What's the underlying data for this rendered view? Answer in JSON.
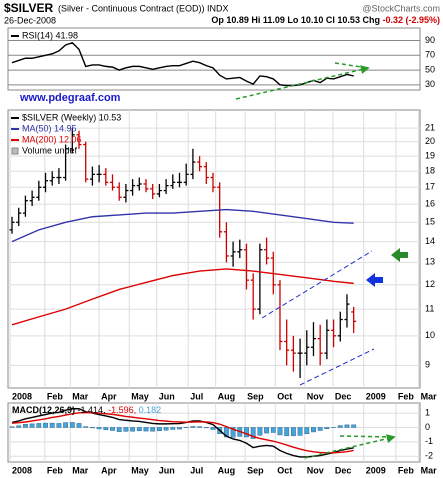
{
  "header": {
    "symbol": "$SILVER",
    "description": "(Silver - Continuous Contract (EOD)) INDX",
    "source": "@StockCharts.com",
    "date": "26-Dec-2008",
    "quote": "Op 10.89 Hi 11.09 Lo 10.10 Cl 10.53 Chg",
    "change": "-0.32 (-2.95%)"
  },
  "watermark": "www.pdegraaf.com",
  "chart_data": [
    {
      "type": "line",
      "xlim": [
        -0.6,
        60.9
      ],
      "ylim": [
        23,
        107
      ],
      "yticks": [
        30,
        50,
        70,
        90
      ],
      "grid_color": "#888888",
      "legend": "upper left",
      "series": [
        {
          "name": "RSI(14) 41.98",
          "color": "#000000",
          "values": [
            60,
            63,
            66,
            66,
            68,
            70,
            72,
            76,
            84,
            87,
            78,
            55,
            57,
            57,
            55,
            54,
            50,
            53,
            55,
            55,
            53,
            51,
            53,
            55,
            56,
            56,
            59,
            62,
            60,
            56,
            53,
            43,
            38,
            39,
            40,
            35,
            31,
            42,
            41,
            38,
            30,
            29,
            29,
            30,
            33,
            36,
            33,
            39,
            38,
            41,
            44,
            41.98
          ]
        }
      ]
    },
    {
      "type": "ohlc",
      "log": true,
      "xlim": [
        -0.6,
        60.9
      ],
      "ylim": [
        8.3,
        22.4
      ],
      "yticks": [
        9,
        10,
        11,
        12,
        13,
        14,
        15,
        16,
        17,
        18,
        19,
        20,
        21
      ],
      "grid_color": "#dddddd",
      "legend": "upper left",
      "xticks": [
        {
          "value": -0.3,
          "label": "2008"
        },
        {
          "value": 4.9,
          "label": "Feb"
        },
        {
          "value": 8.7,
          "label": "Mar"
        },
        {
          "value": 13.0,
          "label": "Apr"
        },
        {
          "value": 17.5,
          "label": "May"
        },
        {
          "value": 21.6,
          "label": "Jun"
        },
        {
          "value": 26.3,
          "label": "Jul"
        },
        {
          "value": 30.4,
          "label": "Aug"
        },
        {
          "value": 34.8,
          "label": "Sep"
        },
        {
          "value": 39.3,
          "label": "Oct"
        },
        {
          "value": 43.7,
          "label": "Nov"
        },
        {
          "value": 47.9,
          "label": "Dec"
        },
        {
          "value": 52.5,
          "label": "2009"
        },
        {
          "value": 57.3,
          "label": "Feb"
        },
        {
          "value": 60.7,
          "label": "Mar"
        }
      ],
      "legend_note": "Volume undef",
      "series": [
        {
          "name": "$SILVER (Weekly) 10.53",
          "color": "#000000",
          "down_color": "#cc0000",
          "open": [
            14.6,
            15.0,
            15.5,
            16.2,
            16.4,
            17.0,
            17.4,
            17.6,
            17.6,
            19.5,
            20.5,
            19.8,
            17.5,
            17.8,
            17.8,
            17.3,
            17.0,
            16.4,
            16.8,
            17.1,
            17.2,
            16.9,
            16.6,
            16.8,
            17.1,
            17.3,
            17.3,
            17.8,
            18.6,
            18.3,
            17.6,
            17.0,
            14.5,
            13.3,
            13.5,
            13.6,
            12.2,
            11.0,
            13.6,
            13.2,
            12.0,
            9.8,
            9.5,
            9.4,
            9.4,
            9.6,
            9.9,
            9.4,
            10.2,
            10.0,
            10.6,
            10.89
          ],
          "high": [
            15.3,
            15.8,
            16.5,
            16.8,
            17.4,
            17.9,
            18.0,
            18.2,
            19.8,
            21.0,
            20.8,
            20.0,
            18.3,
            18.4,
            18.2,
            17.8,
            17.3,
            17.2,
            17.5,
            17.6,
            17.5,
            17.2,
            17.2,
            17.5,
            17.8,
            17.9,
            18.5,
            19.5,
            19.0,
            18.6,
            17.9,
            17.3,
            15.0,
            14.0,
            14.1,
            13.9,
            12.5,
            13.9,
            14.2,
            13.5,
            12.2,
            10.6,
            10.0,
            9.9,
            10.2,
            10.5,
            10.4,
            10.6,
            10.6,
            10.9,
            11.6,
            11.09
          ],
          "low": [
            14.4,
            14.8,
            15.3,
            15.9,
            16.2,
            16.7,
            17.1,
            17.2,
            17.4,
            19.2,
            19.5,
            17.3,
            17.1,
            17.3,
            17.1,
            16.8,
            16.2,
            16.1,
            16.5,
            16.8,
            16.7,
            16.3,
            16.4,
            16.6,
            16.9,
            17.0,
            17.1,
            17.5,
            18.0,
            17.2,
            16.7,
            14.2,
            13.0,
            12.8,
            13.2,
            11.8,
            10.6,
            10.8,
            12.9,
            11.6,
            9.5,
            9.0,
            8.8,
            8.6,
            9.0,
            9.3,
            9.0,
            9.2,
            9.6,
            9.8,
            10.3,
            10.1
          ],
          "close": [
            15.0,
            15.5,
            16.2,
            16.4,
            17.0,
            17.4,
            17.6,
            17.6,
            19.5,
            20.5,
            19.8,
            17.5,
            17.8,
            17.8,
            17.3,
            17.0,
            16.4,
            16.8,
            17.1,
            17.2,
            16.9,
            16.6,
            16.8,
            17.1,
            17.3,
            17.3,
            17.8,
            18.6,
            18.3,
            17.6,
            17.0,
            14.5,
            13.3,
            13.5,
            13.6,
            12.2,
            11.0,
            13.6,
            13.2,
            12.0,
            9.8,
            9.5,
            9.4,
            9.4,
            9.6,
            9.9,
            9.4,
            10.2,
            10.0,
            10.6,
            11.2,
            10.53
          ]
        },
        {
          "name": "MA(50) 14.95",
          "type": "line",
          "color": "#3333aa",
          "x": [
            0,
            4,
            8,
            12,
            16,
            20,
            24,
            28,
            32,
            36,
            40,
            44,
            48,
            51
          ],
          "values": [
            14.0,
            14.6,
            15.0,
            15.3,
            15.4,
            15.5,
            15.5,
            15.6,
            15.7,
            15.6,
            15.4,
            15.2,
            15.0,
            14.95
          ]
        },
        {
          "name": "MA(200) 12.06",
          "type": "line",
          "color": "#dd0000",
          "x": [
            0,
            4,
            8,
            12,
            16,
            20,
            24,
            28,
            32,
            36,
            40,
            44,
            48,
            51
          ],
          "values": [
            10.4,
            10.7,
            11.0,
            11.4,
            11.8,
            12.1,
            12.4,
            12.6,
            12.7,
            12.6,
            12.45,
            12.3,
            12.15,
            12.06
          ]
        }
      ]
    },
    {
      "type": "line",
      "xlim": [
        -0.6,
        60.9
      ],
      "ylim": [
        -2.4,
        1.7
      ],
      "yticks": [
        -2,
        -1,
        0,
        1
      ],
      "grid_color": "#dddddd",
      "legend": "inline",
      "label": "MACD(12,26,9)",
      "xticks": [
        {
          "value": -0.3,
          "label": "2008"
        },
        {
          "value": 4.9,
          "label": "Feb"
        },
        {
          "value": 8.7,
          "label": "Mar"
        },
        {
          "value": 13.0,
          "label": "Apr"
        },
        {
          "value": 17.5,
          "label": "May"
        },
        {
          "value": 21.6,
          "label": "Jun"
        },
        {
          "value": 26.3,
          "label": "Jul"
        },
        {
          "value": 30.4,
          "label": "Aug"
        },
        {
          "value": 34.8,
          "label": "Sep"
        },
        {
          "value": 39.3,
          "label": "Oct"
        },
        {
          "value": 43.7,
          "label": "Nov"
        },
        {
          "value": 47.9,
          "label": "Dec"
        },
        {
          "value": 52.5,
          "label": "2009"
        },
        {
          "value": 57.3,
          "label": "Feb"
        },
        {
          "value": 60.7,
          "label": "Mar"
        }
      ],
      "series": [
        {
          "name": "-1.414,",
          "color": "#000000",
          "values": [
            0.35,
            0.45,
            0.6,
            0.7,
            0.8,
            0.9,
            1.0,
            1.05,
            1.2,
            1.3,
            1.3,
            1.1,
            1.0,
            0.9,
            0.8,
            0.7,
            0.55,
            0.5,
            0.45,
            0.42,
            0.35,
            0.28,
            0.25,
            0.25,
            0.26,
            0.27,
            0.35,
            0.45,
            0.45,
            0.35,
            0.2,
            -0.2,
            -0.6,
            -0.8,
            -0.9,
            -1.1,
            -1.4,
            -1.3,
            -1.25,
            -1.3,
            -1.6,
            -1.8,
            -1.95,
            -2.05,
            -2.05,
            -2.0,
            -1.95,
            -1.85,
            -1.75,
            -1.6,
            -1.5,
            -1.414
          ]
        },
        {
          "name": "-1.596,",
          "color": "#dd0000",
          "values": [
            0.3,
            0.33,
            0.38,
            0.45,
            0.52,
            0.6,
            0.7,
            0.77,
            0.86,
            0.95,
            1.02,
            1.04,
            1.03,
            1.0,
            0.96,
            0.91,
            0.84,
            0.77,
            0.71,
            0.65,
            0.6,
            0.54,
            0.48,
            0.44,
            0.4,
            0.38,
            0.37,
            0.38,
            0.39,
            0.38,
            0.34,
            0.23,
            0.06,
            -0.12,
            -0.28,
            -0.44,
            -0.63,
            -0.76,
            -0.86,
            -0.95,
            -1.08,
            -1.22,
            -1.37,
            -1.5,
            -1.61,
            -1.69,
            -1.74,
            -1.76,
            -1.76,
            -1.73,
            -1.68,
            -1.596
          ]
        },
        {
          "name": "0.182",
          "type": "bar",
          "color": "#4aa3d8",
          "values": [
            0.05,
            0.12,
            0.22,
            0.25,
            0.28,
            0.3,
            0.3,
            0.28,
            0.34,
            0.35,
            0.28,
            0.06,
            -0.03,
            -0.1,
            -0.16,
            -0.21,
            -0.29,
            -0.27,
            -0.26,
            -0.23,
            -0.25,
            -0.26,
            -0.23,
            -0.19,
            -0.14,
            -0.11,
            -0.02,
            0.07,
            0.06,
            -0.03,
            -0.14,
            -0.43,
            -0.66,
            -0.68,
            -0.62,
            -0.66,
            -0.77,
            -0.54,
            -0.39,
            -0.35,
            -0.52,
            -0.58,
            -0.58,
            -0.55,
            -0.44,
            -0.31,
            -0.21,
            -0.09,
            0.01,
            0.13,
            0.18,
            0.182
          ]
        }
      ]
    }
  ]
}
